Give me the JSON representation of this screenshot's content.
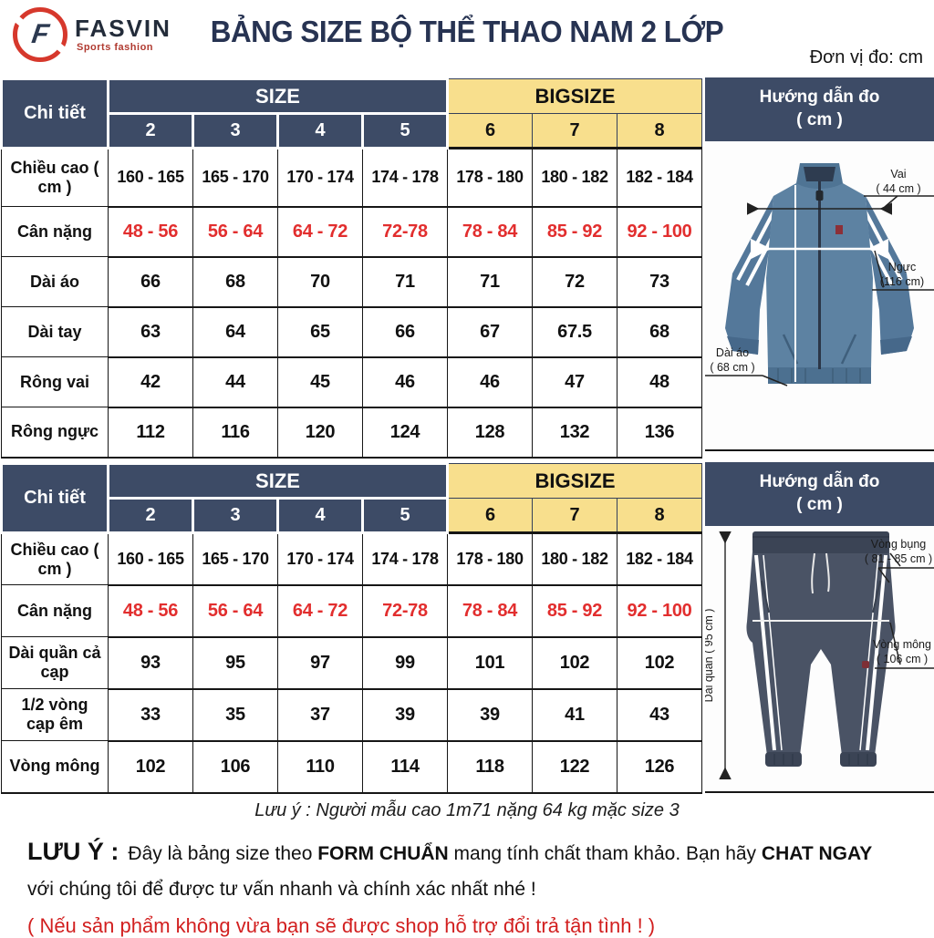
{
  "header": {
    "brand": "FASVIN",
    "brand_tagline": "Sports fashion",
    "brand_f": "F",
    "title": "BẢNG SIZE BỘ THỂ THAO NAM 2 LỚP",
    "unit_note": "Đơn vị đo: cm"
  },
  "colors": {
    "navy_header": "#3d4b66",
    "bigsize_yellow": "#f8df8d",
    "weight_red": "#e22e2e",
    "title_navy": "#273352",
    "logo_red": "#d6382c",
    "warranty_red": "#d21f1f",
    "jacket_blue": "#5d82a2",
    "pants_navy": "#4a5365"
  },
  "tables": [
    {
      "corner_label": "Chi tiết",
      "size_group_label": "SIZE",
      "bigsize_group_label": "BIGSIZE",
      "size_columns": [
        "2",
        "3",
        "4",
        "5"
      ],
      "bigsize_columns": [
        "6",
        "7",
        "8"
      ],
      "rows": [
        {
          "label": "Chiều cao ( cm )",
          "values": [
            "160 - 165",
            "165 - 170",
            "170 - 174",
            "174 - 178",
            "178 - 180",
            "180 - 182",
            "182 - 184"
          ]
        },
        {
          "label": "Cân nặng",
          "red": true,
          "values": [
            "48 - 56",
            "56 - 64",
            "64 - 72",
            "72-78",
            "78 - 84",
            "85 - 92",
            "92 - 100"
          ]
        },
        {
          "label": "Dài áo",
          "values": [
            "66",
            "68",
            "70",
            "71",
            "71",
            "72",
            "73"
          ]
        },
        {
          "label": "Dài tay",
          "values": [
            "63",
            "64",
            "65",
            "66",
            "67",
            "67.5",
            "68"
          ]
        },
        {
          "label": "Rông vai",
          "values": [
            "42",
            "44",
            "45",
            "46",
            "46",
            "47",
            "48"
          ]
        },
        {
          "label": "Rông ngực",
          "values": [
            "112",
            "116",
            "120",
            "124",
            "128",
            "132",
            "136"
          ]
        }
      ]
    },
    {
      "corner_label": "Chi tiết",
      "size_group_label": "SIZE",
      "bigsize_group_label": "BIGSIZE",
      "size_columns": [
        "2",
        "3",
        "4",
        "5"
      ],
      "bigsize_columns": [
        "6",
        "7",
        "8"
      ],
      "rows": [
        {
          "label": "Chiều cao ( cm )",
          "values": [
            "160 - 165",
            "165 - 170",
            "170 - 174",
            "174 - 178",
            "178 - 180",
            "180 - 182",
            "182 - 184"
          ]
        },
        {
          "label": "Cân nặng",
          "red": true,
          "values": [
            "48 - 56",
            "56 - 64",
            "64 - 72",
            "72-78",
            "78 - 84",
            "85 - 92",
            "92 - 100"
          ]
        },
        {
          "label": "Dài quần cả cạp",
          "values": [
            "93",
            "95",
            "97",
            "99",
            "101",
            "102",
            "102"
          ]
        },
        {
          "label": "1/2 vòng cạp êm",
          "values": [
            "33",
            "35",
            "37",
            "39",
            "39",
            "41",
            "43"
          ]
        },
        {
          "label": "Vòng mông",
          "values": [
            "102",
            "106",
            "110",
            "114",
            "118",
            "122",
            "126"
          ]
        }
      ]
    }
  ],
  "guides": [
    {
      "title_line1": "Hướng dẫn đo",
      "title_line2": "( cm )",
      "shoulder_label": "Vai",
      "shoulder_value": "( 44 cm )",
      "chest_label": "Ngực",
      "chest_value": "(116 cm)",
      "length_label": "Dài áo",
      "length_value": "( 68 cm )"
    },
    {
      "title_line1": "Hướng dẫn đo",
      "title_line2": "( cm )",
      "waist_label": "Vòng bụng",
      "waist_value": "( 81 - 85 cm )",
      "hip_label": "Vòng mông",
      "hip_value": "( 106 cm )",
      "length_label": "Dài quần ( 95 cm )"
    }
  ],
  "footer": {
    "model_note": "Lưu ý : Người mẫu cao 1m71 nặng 64 kg mặc size 3",
    "luu_y": "LƯU Ý :",
    "segments": [
      {
        "text": "Đây là bảng size theo ",
        "bold": false
      },
      {
        "text": "FORM CHUẨN",
        "bold": true
      },
      {
        "text": " mang tính chất tham khảo. Bạn hãy ",
        "bold": false
      },
      {
        "text": "CHAT NGAY",
        "bold": true
      }
    ],
    "line2": "với chúng tôi để được tư vấn nhanh và chính xác nhất nhé !",
    "warranty": "( Nếu sản phẩm không vừa bạn sẽ được shop hỗ trợ đổi trả tận tình ! )"
  }
}
